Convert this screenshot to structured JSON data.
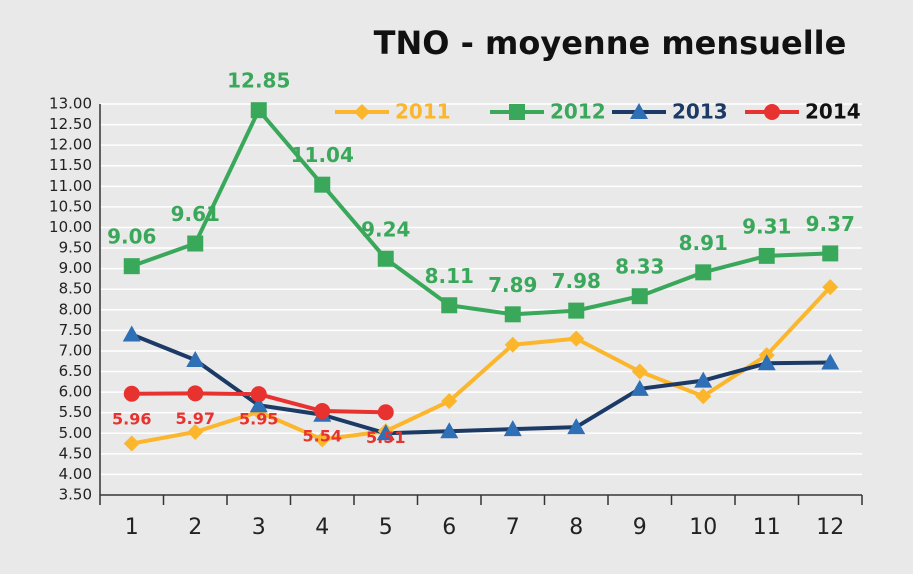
{
  "chart_data": {
    "type": "line",
    "title": "TNO - moyenne mensuelle",
    "categories": [
      "1",
      "2",
      "3",
      "4",
      "5",
      "6",
      "7",
      "8",
      "9",
      "10",
      "11",
      "12"
    ],
    "series": [
      {
        "name": "2011",
        "color": "#fbb62c",
        "marker": "diamond",
        "marker_color": "#fbb62c",
        "legend_color": "#fbb62c",
        "show_labels": false,
        "values": [
          4.75,
          5.03,
          5.52,
          4.85,
          5.05,
          5.78,
          7.15,
          7.3,
          6.5,
          5.9,
          6.9,
          8.55
        ]
      },
      {
        "name": "2012",
        "color": "#3aa85a",
        "marker": "square",
        "marker_color": "#3aa85a",
        "legend_color": "#3aa85a",
        "show_labels": true,
        "label_position": "above",
        "values": [
          9.06,
          9.61,
          12.85,
          11.04,
          9.24,
          8.11,
          7.89,
          7.98,
          8.33,
          8.91,
          9.31,
          9.37
        ]
      },
      {
        "name": "2013",
        "color": "#1c3a66",
        "marker": "triangle",
        "marker_color": "#2f6fb5",
        "legend_color": "#1c3a66",
        "show_labels": false,
        "values": [
          7.4,
          6.78,
          5.68,
          5.45,
          5.0,
          5.05,
          5.1,
          5.15,
          6.08,
          6.28,
          6.7,
          6.72
        ]
      },
      {
        "name": "2014",
        "color": "#e8322f",
        "marker": "circle",
        "marker_color": "#e8322f",
        "legend_color": "#111111",
        "show_labels": true,
        "label_position": "below",
        "values": [
          5.96,
          5.97,
          5.95,
          5.54,
          5.51,
          null,
          null,
          null,
          null,
          null,
          null,
          null
        ]
      }
    ],
    "ylim": [
      3.5,
      13
    ],
    "yticks": [
      {
        "value": 3.5,
        "label": "3.50"
      },
      {
        "value": 4,
        "label": "4.00"
      },
      {
        "value": 4.5,
        "label": "4.50"
      },
      {
        "value": 5,
        "label": "5.00"
      },
      {
        "value": 5.5,
        "label": "5.50"
      },
      {
        "value": 6,
        "label": "6.00"
      },
      {
        "value": 6.5,
        "label": "6.50"
      },
      {
        "value": 7,
        "label": "7.00"
      },
      {
        "value": 7.5,
        "label": "7.50"
      },
      {
        "value": 8,
        "label": "8.00"
      },
      {
        "value": 8.5,
        "label": "8.50"
      },
      {
        "value": 9,
        "label": "9.00"
      },
      {
        "value": 9.5,
        "label": "9.50"
      },
      {
        "value": 10,
        "label": "10.00"
      },
      {
        "value": 10.5,
        "label": "10.50"
      },
      {
        "value": 11,
        "label": "11.00"
      },
      {
        "value": 11.5,
        "label": "11.50"
      },
      {
        "value": 12,
        "label": "12.00"
      },
      {
        "value": 12.5,
        "label": "12.50"
      },
      {
        "value": 13,
        "label": "13.00"
      }
    ],
    "grid": true,
    "legend": "top"
  }
}
